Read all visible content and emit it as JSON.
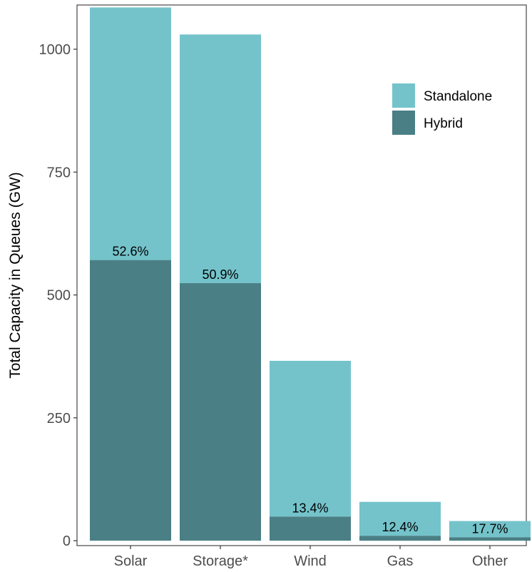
{
  "chart_data": {
    "type": "bar",
    "stacked": true,
    "title": "",
    "xlabel": "",
    "ylabel": "Total Capacity in Queues (GW)",
    "categories": [
      "Solar",
      "Storage*",
      "Wind",
      "Gas",
      "Other"
    ],
    "series": [
      {
        "name": "Hybrid",
        "values": [
          571,
          524,
          49,
          10,
          7
        ],
        "color": "#4a7f85"
      },
      {
        "name": "Standalone",
        "values": [
          514,
          506,
          317,
          69,
          33
        ],
        "color": "#74c3cb"
      }
    ],
    "totals": [
      1085,
      1030,
      366,
      79,
      40
    ],
    "data_labels": [
      "52.6%",
      "50.9%",
      "13.4%",
      "12.4%",
      "17.7%"
    ],
    "ylim": [
      -10,
      1090
    ],
    "yticks": [
      0,
      250,
      500,
      750,
      1000
    ],
    "ytick_labels": [
      "0",
      "250",
      "500",
      "750",
      "1000"
    ],
    "grid": false,
    "legend_position": "top-right",
    "legend": [
      {
        "label": "Standalone",
        "color": "#74c3cb"
      },
      {
        "label": "Hybrid",
        "color": "#4a7f85"
      }
    ]
  }
}
